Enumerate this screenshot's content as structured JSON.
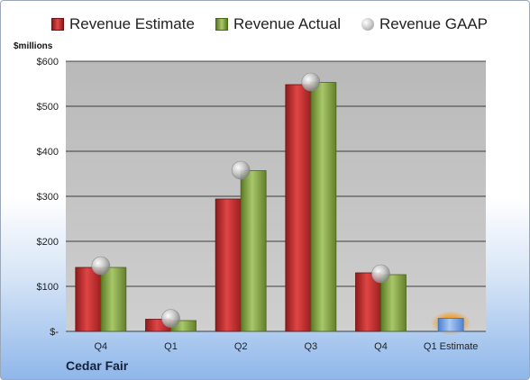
{
  "chart_data": {
    "type": "bar",
    "unit_label": "$millions",
    "company": "Cedar Fair",
    "categories": [
      "Q4",
      "Q1",
      "Q2",
      "Q3",
      "Q4",
      "Q1 Estimate"
    ],
    "series": [
      {
        "name": "Revenue Estimate",
        "values": [
          142,
          27,
          294,
          548,
          130,
          null
        ]
      },
      {
        "name": "Revenue Actual",
        "values": [
          142,
          24,
          357,
          553,
          126,
          null
        ]
      },
      {
        "name": "Revenue GAAP",
        "values": [
          146,
          29,
          358,
          554,
          128,
          null
        ]
      }
    ],
    "forecast": {
      "category": "Q1 Estimate",
      "value": 29
    },
    "y_ticks": [
      "$-",
      "$100",
      "$200",
      "$300",
      "$400",
      "$500",
      "$600"
    ],
    "ylim": [
      0,
      600
    ],
    "grid": true,
    "legend_position": "top",
    "colors": {
      "estimate": "#c62828",
      "actual": "#8db04a",
      "gaap": "#b8b8b8",
      "forecast": "#6f9fe0",
      "forecast_glow": "#f0a030",
      "plot_bg": "#c0c0c0"
    }
  }
}
